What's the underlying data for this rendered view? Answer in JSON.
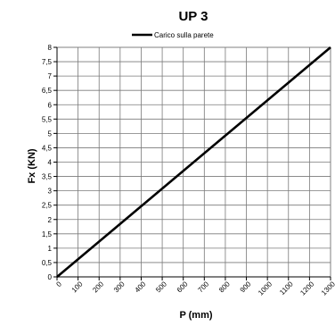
{
  "chart_data": {
    "type": "line",
    "title": "UP 3",
    "xlabel": "P (mm)",
    "ylabel": "Fx (KN)",
    "legend_position": "top",
    "grid": true,
    "xlim": [
      0,
      1300
    ],
    "ylim": [
      0,
      8
    ],
    "x_ticks": [
      "0",
      "100",
      "200",
      "300",
      "400",
      "500",
      "600",
      "700",
      "800",
      "900",
      "1000",
      "1100",
      "1200",
      "1300"
    ],
    "y_ticks": [
      "0",
      "0,5",
      "1",
      "1,5",
      "2",
      "2,5",
      "3",
      "3,5",
      "4",
      "4,5",
      "5",
      "5,5",
      "6",
      "6,5",
      "7",
      "7,5",
      "8"
    ],
    "series": [
      {
        "name": "Carico sulla parete",
        "color": "#000000",
        "x": [
          0,
          1300
        ],
        "y": [
          0,
          8
        ]
      }
    ]
  }
}
